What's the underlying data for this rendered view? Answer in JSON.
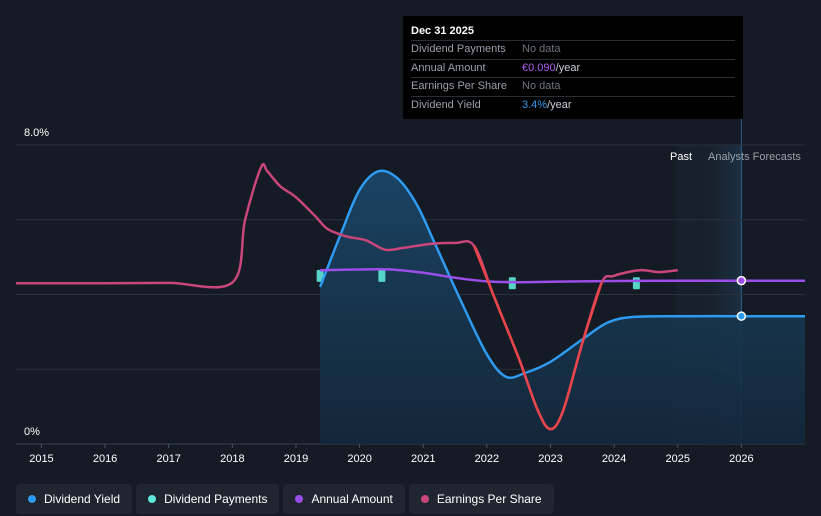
{
  "tooltip": {
    "date": "Dec 31 2025",
    "rows": [
      {
        "label": "Dividend Payments",
        "value": "No data",
        "unit": "",
        "color": "#6e747c"
      },
      {
        "label": "Annual Amount",
        "value": "€0.090",
        "unit": "/year",
        "color": "#b05cf0"
      },
      {
        "label": "Earnings Per Share",
        "value": "No data",
        "unit": "",
        "color": "#6e747c"
      },
      {
        "label": "Dividend Yield",
        "value": "3.4%",
        "unit": "/year",
        "color": "#2e9bf0"
      }
    ]
  },
  "labels": {
    "past": "Past",
    "forecast": "Analysts Forecasts"
  },
  "legend": [
    {
      "label": "Dividend Yield",
      "color": "#2e9bf0"
    },
    {
      "label": "Dividend Payments",
      "color": "#5ce8d8"
    },
    {
      "label": "Annual Amount",
      "color": "#9b4de8"
    },
    {
      "label": "Earnings Per Share",
      "color": "#c8467a"
    }
  ],
  "chart_data": {
    "type": "line",
    "x_range": [
      2014.6,
      2027.0
    ],
    "y_range": [
      0,
      8.0
    ],
    "y_ticks": [
      {
        "value": 8.0,
        "label": "8.0%"
      },
      {
        "value": 0,
        "label": "0%"
      }
    ],
    "x_ticks": [
      "2015",
      "2016",
      "2017",
      "2018",
      "2019",
      "2020",
      "2021",
      "2022",
      "2023",
      "2024",
      "2025",
      "2026"
    ],
    "past_end": 2025.35,
    "forecast_start": 2025.35,
    "highlight_x": 2026.0,
    "grid": true,
    "legend_position": "bottom",
    "series": [
      {
        "name": "Dividend Yield",
        "color": "#2e9bf0",
        "points": [
          [
            2019.38,
            4.2
          ],
          [
            2019.7,
            5.6
          ],
          [
            2020.0,
            6.8
          ],
          [
            2020.3,
            7.3
          ],
          [
            2020.6,
            7.1
          ],
          [
            2020.9,
            6.4
          ],
          [
            2021.2,
            5.3
          ],
          [
            2021.6,
            3.8
          ],
          [
            2022.0,
            2.4
          ],
          [
            2022.3,
            1.8
          ],
          [
            2022.6,
            1.9
          ],
          [
            2023.0,
            2.2
          ],
          [
            2023.5,
            2.8
          ],
          [
            2023.9,
            3.25
          ],
          [
            2024.3,
            3.4
          ],
          [
            2025.0,
            3.42
          ],
          [
            2026.0,
            3.42
          ],
          [
            2027.0,
            3.42
          ]
        ]
      },
      {
        "name": "Annual Amount",
        "color": "#9b4de8",
        "points": [
          [
            2019.38,
            4.65
          ],
          [
            2020.0,
            4.67
          ],
          [
            2020.5,
            4.67
          ],
          [
            2021.0,
            4.58
          ],
          [
            2021.5,
            4.45
          ],
          [
            2022.0,
            4.35
          ],
          [
            2022.5,
            4.33
          ],
          [
            2023.0,
            4.34
          ],
          [
            2024.0,
            4.36
          ],
          [
            2025.0,
            4.37
          ],
          [
            2026.0,
            4.37
          ],
          [
            2027.0,
            4.37
          ]
        ]
      },
      {
        "name": "Earnings Per Share",
        "color": "#c8467a",
        "points": [
          [
            2014.6,
            4.3
          ],
          [
            2016.0,
            4.3
          ],
          [
            2017.0,
            4.31
          ],
          [
            2018.0,
            4.32
          ],
          [
            2018.2,
            6.0
          ],
          [
            2018.45,
            7.4
          ],
          [
            2018.55,
            7.3
          ],
          [
            2018.75,
            6.9
          ],
          [
            2019.0,
            6.6
          ],
          [
            2019.3,
            6.1
          ],
          [
            2019.5,
            5.75
          ],
          [
            2019.8,
            5.55
          ],
          [
            2020.1,
            5.45
          ],
          [
            2020.4,
            5.2
          ],
          [
            2020.7,
            5.25
          ],
          [
            2021.1,
            5.35
          ],
          [
            2021.5,
            5.38
          ],
          [
            2021.8,
            5.3
          ],
          [
            2022.1,
            4.0
          ],
          [
            2022.5,
            2.3
          ],
          [
            2022.8,
            0.9
          ],
          [
            2023.0,
            0.4
          ],
          [
            2023.2,
            0.9
          ],
          [
            2023.5,
            2.7
          ],
          [
            2023.8,
            4.3
          ],
          [
            2024.0,
            4.5
          ],
          [
            2024.4,
            4.65
          ],
          [
            2024.7,
            4.6
          ],
          [
            2025.0,
            4.65
          ]
        ]
      }
    ],
    "dividend_payments": [
      {
        "x": 2019.38,
        "y": 4.5
      },
      {
        "x": 2020.35,
        "y": 4.5
      },
      {
        "x": 2022.4,
        "y": 4.3
      },
      {
        "x": 2024.35,
        "y": 4.3
      }
    ],
    "markers": [
      {
        "series": "Annual Amount",
        "x": 2026.0,
        "y": 4.37,
        "color": "#9b4de8"
      },
      {
        "series": "Dividend Yield",
        "x": 2026.0,
        "y": 3.42,
        "color": "#2e9bf0"
      }
    ]
  }
}
